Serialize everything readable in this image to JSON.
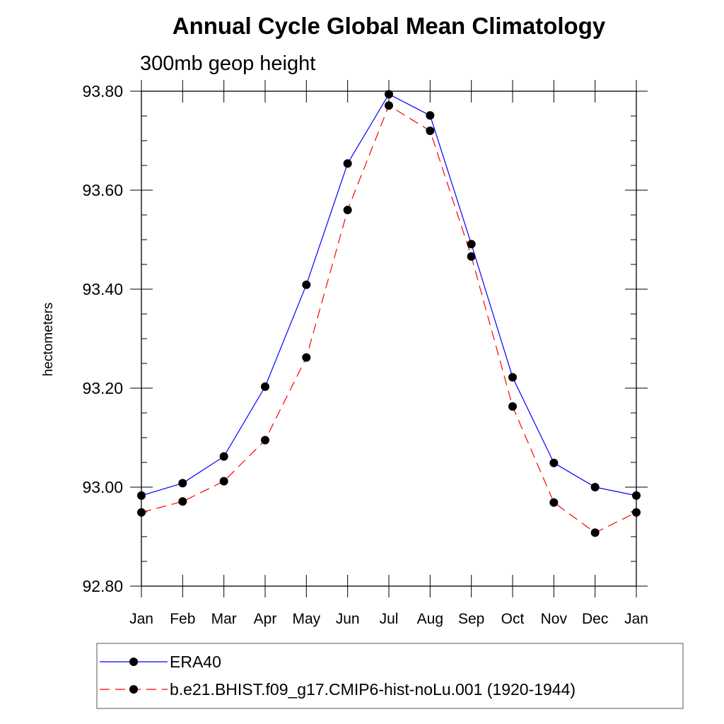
{
  "chart_data": {
    "type": "line",
    "title": "Annual Cycle Global Mean Climatology",
    "subtitle": "300mb geop height",
    "xlabel": "",
    "ylabel": "hectometers",
    "categories": [
      "Jan",
      "Feb",
      "Mar",
      "Apr",
      "May",
      "Jun",
      "Jul",
      "Aug",
      "Sep",
      "Oct",
      "Nov",
      "Dec",
      "Jan"
    ],
    "ylim": [
      92.8,
      93.8
    ],
    "yticks": [
      92.8,
      93.0,
      93.2,
      93.4,
      93.6,
      93.8
    ],
    "ytick_labels": [
      "92.80",
      "93.00",
      "93.20",
      "93.40",
      "93.60",
      "93.80"
    ],
    "grid": false,
    "legend_position": "bottom",
    "series": [
      {
        "name": "ERA40",
        "color": "#0000ff",
        "line_style": "solid",
        "marker": "circle",
        "values": [
          92.983,
          93.008,
          93.062,
          93.203,
          93.409,
          93.654,
          93.794,
          93.751,
          93.491,
          93.222,
          93.049,
          93.0,
          92.983
        ]
      },
      {
        "name": "b.e21.BHIST.f09_g17.CMIP6-hist-noLu.001 (1920-1944)",
        "color": "#ff0000",
        "line_style": "dashed",
        "marker": "circle",
        "values": [
          92.949,
          92.971,
          93.012,
          93.095,
          93.262,
          93.56,
          93.771,
          93.72,
          93.466,
          93.163,
          92.969,
          92.908,
          92.949
        ]
      }
    ]
  }
}
